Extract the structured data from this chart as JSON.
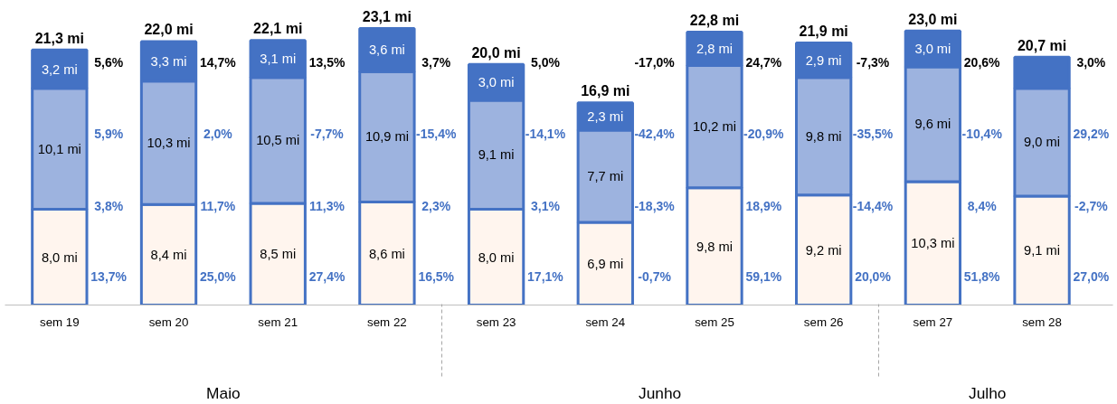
{
  "chart_data": {
    "type": "bar",
    "stacked": true,
    "categories": [
      "sem 19",
      "sem 20",
      "sem 21",
      "sem 22",
      "sem 23",
      "sem 24",
      "sem 25",
      "sem 26",
      "sem 27",
      "sem 28"
    ],
    "series": [
      {
        "color": "#fff5ee",
        "values": [
          8.0,
          8.4,
          8.5,
          8.6,
          8.0,
          6.9,
          9.8,
          9.2,
          10.3,
          9.1
        ],
        "value_labels": [
          "8,0 mi",
          "8,4 mi",
          "8,5 mi",
          "8,6 mi",
          "8,0 mi",
          "6,9 mi",
          "9,8 mi",
          "9,2 mi",
          "10,3 mi",
          "9,1 mi"
        ]
      },
      {
        "color": "#9db3df",
        "values": [
          10.1,
          10.3,
          10.5,
          10.9,
          9.1,
          7.7,
          10.2,
          9.8,
          9.6,
          9.0
        ],
        "value_labels": [
          "10,1 mi",
          "10,3 mi",
          "10,5 mi",
          "10,9 mi",
          "9,1 mi",
          "7,7 mi",
          "10,2 mi",
          "9,8 mi",
          "9,6 mi",
          "9,0 mi"
        ]
      },
      {
        "color": "#4472c4",
        "values": [
          3.2,
          3.3,
          3.1,
          3.6,
          3.0,
          2.3,
          2.8,
          2.9,
          3.0,
          2.6
        ],
        "value_labels": [
          "3,2 mi",
          "3,3 mi",
          "3,1 mi",
          "3,6 mi",
          "3,0 mi",
          "2,3 mi",
          "2,8 mi",
          "2,9 mi",
          "3,0 mi",
          null
        ]
      }
    ],
    "totals": [
      "21,3 mi",
      "22,0 mi",
      "22,1 mi",
      "23,1 mi",
      "20,0 mi",
      "16,9 mi",
      "22,8 mi",
      "21,9 mi",
      "23,0 mi",
      "20,7 mi"
    ],
    "tick_labels": "x",
    "grid": false,
    "annotations": [
      "Maio",
      "Junho",
      "Julho",
      "5,6%",
      "5,9%",
      "3,8%",
      "13,7%",
      "14,7%",
      "2,0%",
      "11,7%",
      "25,0%",
      "13,5%",
      "-7,7%",
      "11,3%",
      "27,4%",
      "3,7%",
      "-15,4%",
      "2,3%",
      "16,5%",
      "5,0%",
      "-14,1%",
      "3,1%",
      "17,1%",
      "-17,0%",
      "-42,4%",
      "-18,3%",
      "-0,7%",
      "24,7%",
      "-20,9%",
      "18,9%",
      "59,1%",
      "-7,3%",
      "-35,5%",
      "-14,4%",
      "20,0%",
      "20,6%",
      "-10,4%",
      "8,4%",
      "51,8%",
      "3,0%",
      "29,2%",
      "-2,7%",
      "27,0%"
    ]
  }
}
